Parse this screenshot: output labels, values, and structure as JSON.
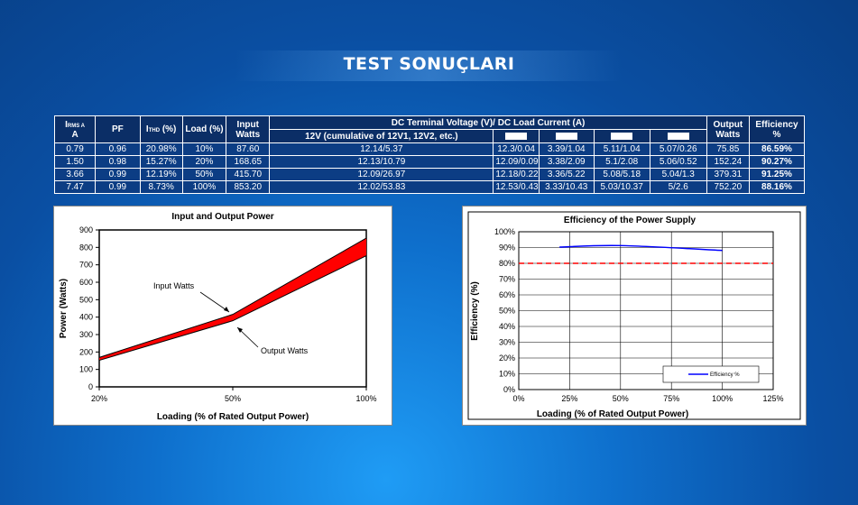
{
  "title": "TEST SONUÇLARI",
  "table": {
    "headers": {
      "irms_main": "I",
      "irms_sub": "RMS A",
      "irms_unit": "A",
      "pf": "PF",
      "ithd_main": "I",
      "ithd_sub": "THD",
      "ithd_unit": " (%)",
      "load": "Load (%)",
      "input_watts": "Input Watts",
      "dc_terminal": "DC Terminal Voltage (V)/ DC Load Current (A)",
      "dc_12v": "12V (cumulative of 12V1, 12V2, etc.)",
      "output_watts": "Output Watts",
      "efficiency": "Efficiency %"
    },
    "rows": [
      [
        "0.79",
        "0.96",
        "20.98%",
        "10%",
        "87.60",
        "12.14/5.37",
        "12.3/0.04",
        "3.39/1.04",
        "5.11/1.04",
        "5.07/0.26",
        "75.85",
        "86.59%"
      ],
      [
        "1.50",
        "0.98",
        "15.27%",
        "20%",
        "168.65",
        "12.13/10.79",
        "12.09/0.09",
        "3.38/2.09",
        "5.1/2.08",
        "5.06/0.52",
        "152.24",
        "90.27%"
      ],
      [
        "3.66",
        "0.99",
        "12.19%",
        "50%",
        "415.70",
        "12.09/26.97",
        "12.18/0.22",
        "3.36/5.22",
        "5.08/5.18",
        "5.04/1.3",
        "379.31",
        "91.25%"
      ],
      [
        "7.47",
        "0.99",
        "8.73%",
        "100%",
        "853.20",
        "12.02/53.83",
        "12.53/0.43",
        "3.33/10.43",
        "5.03/10.37",
        "5/2.6",
        "752.20",
        "88.16%"
      ]
    ]
  },
  "chart_data": [
    {
      "type": "area",
      "title": "Input and Output Power",
      "xlabel": "Loading (% of Rated Output Power)",
      "ylabel": "Power (Watts)",
      "categories": [
        "20%",
        "50%",
        "100%"
      ],
      "x": [
        20,
        50,
        100
      ],
      "series": [
        {
          "name": "Input Watts",
          "values": [
            168.65,
            415.7,
            853.2
          ]
        },
        {
          "name": "Output Watts",
          "values": [
            152.24,
            379.31,
            752.2
          ]
        }
      ],
      "fill_color": "#ff0000",
      "ylim": [
        0,
        900
      ],
      "yticks": [
        0,
        100,
        200,
        300,
        400,
        500,
        600,
        700,
        800,
        900
      ],
      "annotations": [
        "Input Watts",
        "Output Watts"
      ],
      "grid": false
    },
    {
      "type": "line",
      "title": "Efficiency of the Power Supply",
      "xlabel": "Loading (% of Rated Output Power)",
      "ylabel": "Efficiency (%)",
      "x": [
        20,
        50,
        100
      ],
      "series": [
        {
          "name": "Efficiency %",
          "values": [
            90.27,
            91.25,
            88.16
          ],
          "color": "#0000ff"
        }
      ],
      "reference_line": {
        "value": 80,
        "color": "#ff0000",
        "style": "dashed"
      },
      "xlim": [
        0,
        125
      ],
      "xticks": [
        "0%",
        "25%",
        "50%",
        "75%",
        "100%",
        "125%"
      ],
      "ylim": [
        0,
        100
      ],
      "yticks": [
        "0%",
        "10%",
        "20%",
        "30%",
        "40%",
        "50%",
        "60%",
        "70%",
        "80%",
        "90%",
        "100%"
      ],
      "legend": "bottom-right",
      "grid": true
    }
  ]
}
